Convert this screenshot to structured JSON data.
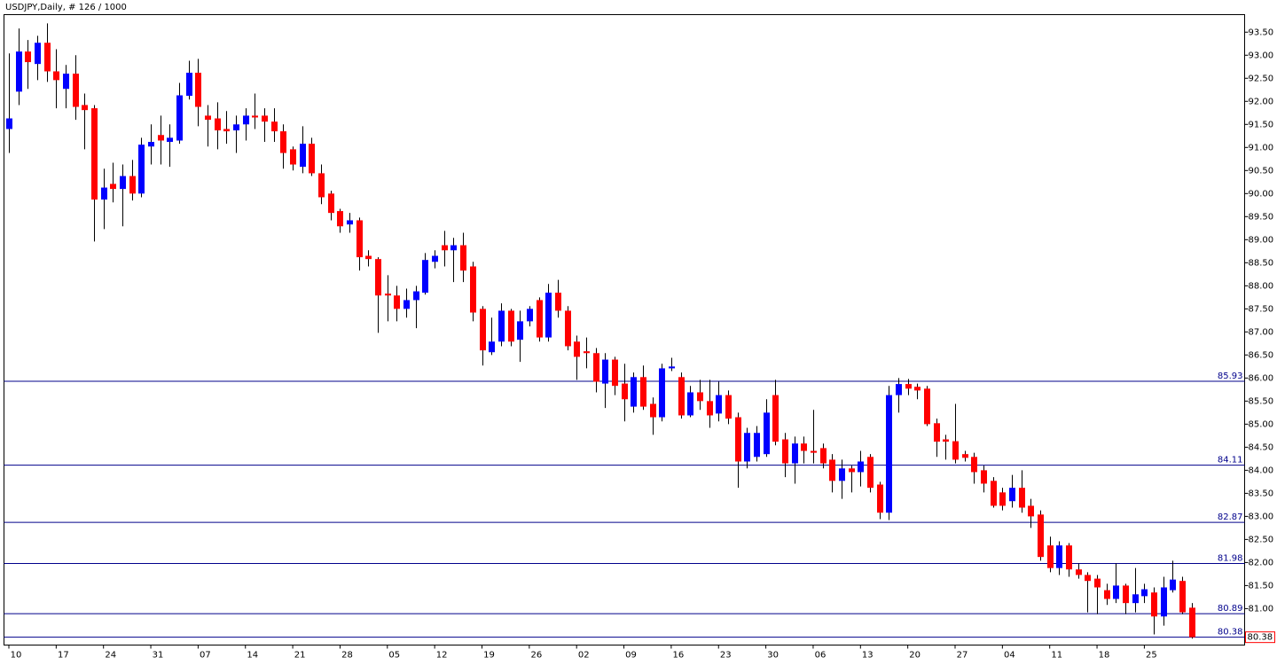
{
  "chart_data": {
    "type": "candlestick",
    "title": "USDJPY,Daily, # 126 / 1000",
    "up_color": "#0000ff",
    "down_color": "#ff0000",
    "wick_color": "#000000",
    "level_color": "#00008b",
    "categories": [
      "10",
      null,
      null,
      null,
      null,
      "17",
      null,
      null,
      null,
      null,
      "24",
      null,
      null,
      null,
      null,
      "31",
      null,
      null,
      null,
      null,
      "07",
      null,
      null,
      null,
      null,
      "14",
      null,
      null,
      null,
      null,
      "21",
      null,
      null,
      null,
      null,
      "28",
      null,
      null,
      null,
      null,
      "05",
      null,
      null,
      null,
      null,
      "12",
      null,
      null,
      null,
      null,
      "19",
      null,
      null,
      null,
      null,
      "26",
      null,
      null,
      null,
      null,
      "02",
      null,
      null,
      null,
      null,
      "09",
      null,
      null,
      null,
      null,
      "16",
      null,
      null,
      null,
      null,
      "23",
      null,
      null,
      null,
      null,
      "30",
      null,
      null,
      null,
      null,
      "06",
      null,
      null,
      null,
      null,
      "13",
      null,
      null,
      null,
      null,
      "20",
      null,
      null,
      null,
      null,
      "27",
      null,
      null,
      null,
      null,
      "04",
      null,
      null,
      null,
      null,
      "11",
      null,
      null,
      null,
      null,
      "18",
      null,
      null,
      null,
      null,
      "25",
      null,
      null,
      null,
      null,
      null
    ],
    "open": [
      91.4,
      92.21,
      93.08,
      92.81,
      93.27,
      92.65,
      92.27,
      92.6,
      91.92,
      91.85,
      89.87,
      90.21,
      90.1,
      90.38,
      90.0,
      91.02,
      91.27,
      91.12,
      91.15,
      92.12,
      92.62,
      91.69,
      91.63,
      91.4,
      91.37,
      91.5,
      91.69,
      91.69,
      91.56,
      91.35,
      90.96,
      90.58,
      91.08,
      90.44,
      90.0,
      89.62,
      89.33,
      89.42,
      88.65,
      88.58,
      87.83,
      87.79,
      87.5,
      87.69,
      87.85,
      88.52,
      88.88,
      88.77,
      88.88,
      88.42,
      87.5,
      86.56,
      86.79,
      87.46,
      86.83,
      87.23,
      87.69,
      86.88,
      87.85,
      87.46,
      86.79,
      86.58,
      86.54,
      85.88,
      86.4,
      85.88,
      85.38,
      86.02,
      85.44,
      85.15,
      86.21,
      86.02,
      85.19,
      85.69,
      85.5,
      85.23,
      85.63,
      85.15,
      84.19,
      84.29,
      84.35,
      85.63,
      84.67,
      84.15,
      84.58,
      84.42,
      84.48,
      84.23,
      83.77,
      84.04,
      83.96,
      84.29,
      83.69,
      83.08,
      85.63,
      85.87,
      85.81,
      85.77,
      85.02,
      84.67,
      84.63,
      84.35,
      84.29,
      84.0,
      83.77,
      83.52,
      83.33,
      83.62,
      83.23,
      83.04,
      82.37,
      81.88,
      82.37,
      81.85,
      81.73,
      81.65,
      81.4,
      81.21,
      81.5,
      81.12,
      81.27,
      81.35,
      80.83,
      81.4,
      81.6,
      81.02
    ],
    "high": [
      93.04,
      93.58,
      93.33,
      93.42,
      93.69,
      93.13,
      92.79,
      93.0,
      92.17,
      91.92,
      90.54,
      90.67,
      90.63,
      90.73,
      91.21,
      91.5,
      91.69,
      91.5,
      92.4,
      92.88,
      92.92,
      91.92,
      91.98,
      91.79,
      91.69,
      91.85,
      92.17,
      91.85,
      91.85,
      91.5,
      91.02,
      91.46,
      91.21,
      90.63,
      90.06,
      89.67,
      89.58,
      89.48,
      88.77,
      88.62,
      88.23,
      88.0,
      87.94,
      88.0,
      88.71,
      88.77,
      89.19,
      89.04,
      89.15,
      88.52,
      87.56,
      87.31,
      87.62,
      87.5,
      87.46,
      87.56,
      87.75,
      88.04,
      88.13,
      87.56,
      86.92,
      86.88,
      86.65,
      86.54,
      86.46,
      86.31,
      86.12,
      86.27,
      85.58,
      86.31,
      86.44,
      86.12,
      85.83,
      85.96,
      85.96,
      85.92,
      85.73,
      85.25,
      84.92,
      84.96,
      85.54,
      85.96,
      84.81,
      84.73,
      84.73,
      85.31,
      84.58,
      84.35,
      84.23,
      84.1,
      84.42,
      84.35,
      83.75,
      85.83,
      86.0,
      85.98,
      85.88,
      85.83,
      85.12,
      84.77,
      85.44,
      84.42,
      84.38,
      84.1,
      83.85,
      83.62,
      83.9,
      84.0,
      83.38,
      83.13,
      82.56,
      82.46,
      82.42,
      81.98,
      81.79,
      81.73,
      81.54,
      81.98,
      81.54,
      81.88,
      81.54,
      81.46,
      81.69,
      82.04,
      81.69,
      81.12
    ],
    "low": [
      90.88,
      91.92,
      92.27,
      92.46,
      92.42,
      91.85,
      91.85,
      91.6,
      90.96,
      88.96,
      89.23,
      89.81,
      89.29,
      89.85,
      89.92,
      90.63,
      90.63,
      90.58,
      91.08,
      92.04,
      91.46,
      91.02,
      90.96,
      91.08,
      90.88,
      91.15,
      91.4,
      91.12,
      91.12,
      90.54,
      90.5,
      90.44,
      90.38,
      89.77,
      89.42,
      89.15,
      89.15,
      88.33,
      88.42,
      86.98,
      87.23,
      87.23,
      87.31,
      87.08,
      87.81,
      88.38,
      88.42,
      88.08,
      88.08,
      87.23,
      86.27,
      86.5,
      86.69,
      86.69,
      86.35,
      87.12,
      86.79,
      86.79,
      87.31,
      86.6,
      85.96,
      86.21,
      85.69,
      85.35,
      85.63,
      85.06,
      85.25,
      85.31,
      84.77,
      85.06,
      86.15,
      85.12,
      85.15,
      85.31,
      84.92,
      85.06,
      85.0,
      83.62,
      84.04,
      84.19,
      84.29,
      84.54,
      83.85,
      83.71,
      84.15,
      84.15,
      84.04,
      83.52,
      83.38,
      83.52,
      83.65,
      83.52,
      82.94,
      82.92,
      85.25,
      85.63,
      85.54,
      84.96,
      84.29,
      84.23,
      84.15,
      84.19,
      83.71,
      83.52,
      83.19,
      83.13,
      83.19,
      83.08,
      82.75,
      82.04,
      81.79,
      81.73,
      81.69,
      81.65,
      80.92,
      80.88,
      81.08,
      81.12,
      80.88,
      80.92,
      81.12,
      80.44,
      80.63,
      81.35,
      80.88,
      80.35
    ],
    "close": [
      91.63,
      93.08,
      92.85,
      93.27,
      92.65,
      92.46,
      92.6,
      91.88,
      91.81,
      89.87,
      90.13,
      90.1,
      90.38,
      90.0,
      91.06,
      91.12,
      91.15,
      91.21,
      92.13,
      92.62,
      91.88,
      91.6,
      91.37,
      91.35,
      91.5,
      91.69,
      91.65,
      91.56,
      91.35,
      90.88,
      90.63,
      91.08,
      90.44,
      89.92,
      89.58,
      89.29,
      89.42,
      88.62,
      88.58,
      87.79,
      87.79,
      87.5,
      87.69,
      87.88,
      88.56,
      88.65,
      88.77,
      88.88,
      88.33,
      87.42,
      86.6,
      86.79,
      87.46,
      86.79,
      87.23,
      87.5,
      86.88,
      87.85,
      87.46,
      86.69,
      86.46,
      86.54,
      85.92,
      86.4,
      85.83,
      85.54,
      86.02,
      85.38,
      85.15,
      86.21,
      86.25,
      85.19,
      85.69,
      85.5,
      85.19,
      85.63,
      85.12,
      84.19,
      84.81,
      84.81,
      85.25,
      84.62,
      84.15,
      84.58,
      84.42,
      84.38,
      84.15,
      83.77,
      84.04,
      83.96,
      84.19,
      83.62,
      83.08,
      85.63,
      85.87,
      85.77,
      85.73,
      85.0,
      84.62,
      84.62,
      84.23,
      84.27,
      83.96,
      83.71,
      83.23,
      83.23,
      83.62,
      83.19,
      83.0,
      82.12,
      81.88,
      82.37,
      81.85,
      81.73,
      81.6,
      81.46,
      81.21,
      81.5,
      81.12,
      81.31,
      81.42,
      80.83,
      81.46,
      81.63,
      80.92,
      80.38
    ],
    "levels": [
      85.93,
      84.11,
      82.87,
      81.98,
      80.89,
      80.38
    ],
    "ylim": [
      80.21,
      93.88
    ],
    "yticks": [
      {
        "value": 81,
        "label": "81.00"
      },
      {
        "value": 81.5,
        "label": "81.50"
      },
      {
        "value": 82,
        "label": "82.00"
      },
      {
        "value": 82.5,
        "label": "82.50"
      },
      {
        "value": 83,
        "label": "83.00"
      },
      {
        "value": 83.5,
        "label": "83.50"
      },
      {
        "value": 84,
        "label": "84.00"
      },
      {
        "value": 84.5,
        "label": "84.50"
      },
      {
        "value": 85,
        "label": "85.00"
      },
      {
        "value": 85.5,
        "label": "85.50"
      },
      {
        "value": 86,
        "label": "86.00"
      },
      {
        "value": 86.5,
        "label": "86.50"
      },
      {
        "value": 87,
        "label": "87.00"
      },
      {
        "value": 87.5,
        "label": "87.50"
      },
      {
        "value": 88,
        "label": "88.00"
      },
      {
        "value": 88.5,
        "label": "88.50"
      },
      {
        "value": 89,
        "label": "89.00"
      },
      {
        "value": 89.5,
        "label": "89.50"
      },
      {
        "value": 90,
        "label": "90.00"
      },
      {
        "value": 90.5,
        "label": "90.50"
      },
      {
        "value": 91,
        "label": "91.00"
      },
      {
        "value": 91.5,
        "label": "91.50"
      },
      {
        "value": 92,
        "label": "92.00"
      },
      {
        "value": 92.5,
        "label": "92.50"
      },
      {
        "value": 93,
        "label": "93.00"
      },
      {
        "value": 93.5,
        "label": "93.50"
      }
    ]
  }
}
